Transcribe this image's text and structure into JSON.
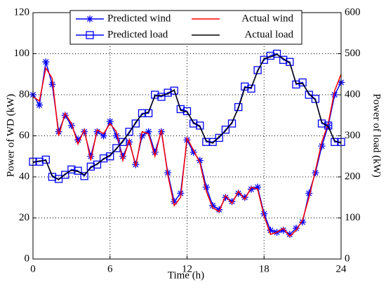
{
  "chart_data": {
    "type": "line",
    "xlabel": "Time (h)",
    "ylabel": "Power of WD (kW)",
    "y2label": "Power of load (kW)",
    "x": [
      0,
      0.5,
      1,
      1.5,
      2,
      2.5,
      3,
      3.5,
      4,
      4.5,
      5,
      5.5,
      6,
      6.5,
      7,
      7.5,
      8,
      8.5,
      9,
      9.5,
      10,
      10.5,
      11,
      11.5,
      12,
      12.5,
      13,
      13.5,
      14,
      14.5,
      15,
      15.5,
      16,
      16.5,
      17,
      17.5,
      18,
      18.5,
      19,
      19.5,
      20,
      20.5,
      21,
      21.5,
      22,
      22.5,
      23,
      23.5,
      24
    ],
    "series": [
      {
        "name": "Predicted wind",
        "color": "#0000ff",
        "marker": "star",
        "axis": "y",
        "values": [
          80,
          75,
          96,
          85,
          62,
          70,
          65,
          58,
          62,
          50,
          62,
          60,
          67,
          60,
          50,
          57,
          46,
          60,
          62,
          52,
          62,
          42,
          28,
          32,
          58,
          52,
          48,
          35,
          26,
          24,
          30,
          28,
          32,
          30,
          34,
          35,
          22,
          14,
          13,
          14,
          12,
          15,
          18,
          32,
          42,
          55,
          65,
          80,
          86
        ]
      },
      {
        "name": "Actual wind",
        "color": "#ff0000",
        "marker": "none",
        "axis": "y",
        "values": [
          79,
          77,
          93,
          88,
          60,
          71,
          66,
          56,
          63,
          48,
          63,
          61,
          66,
          62,
          48,
          58,
          45,
          62,
          61,
          50,
          63,
          41,
          26,
          30,
          59,
          53,
          47,
          33,
          25,
          23,
          31,
          27,
          33,
          29,
          35,
          34,
          21,
          12,
          13,
          15,
          11,
          14,
          19,
          30,
          43,
          57,
          66,
          82,
          90
        ]
      },
      {
        "name": "Predicted load",
        "color": "#0000ff",
        "marker": "square",
        "axis": "y2",
        "values": [
          237,
          237,
          242,
          200,
          195,
          205,
          218,
          215,
          202,
          225,
          230,
          245,
          250,
          270,
          285,
          310,
          330,
          355,
          355,
          400,
          395,
          405,
          410,
          365,
          360,
          330,
          325,
          285,
          285,
          295,
          315,
          330,
          370,
          420,
          415,
          460,
          485,
          495,
          500,
          485,
          480,
          425,
          430,
          400,
          390,
          330,
          325,
          285,
          285
        ]
      },
      {
        "name": "Actual load",
        "color": "#000000",
        "marker": "none",
        "axis": "y2",
        "values": [
          235,
          239,
          240,
          203,
          193,
          207,
          216,
          213,
          205,
          222,
          232,
          243,
          253,
          268,
          288,
          307,
          333,
          352,
          358,
          397,
          398,
          402,
          412,
          362,
          358,
          333,
          322,
          288,
          282,
          298,
          312,
          333,
          367,
          417,
          418,
          457,
          488,
          492,
          498,
          488,
          477,
          428,
          427,
          403,
          387,
          333,
          322,
          288,
          282
        ]
      }
    ],
    "xlim": [
      0,
      24
    ],
    "xticks": [
      0,
      6,
      12,
      18,
      24
    ],
    "ylim": [
      0,
      120
    ],
    "yticks": [
      0,
      20,
      40,
      60,
      80,
      100,
      120
    ],
    "y2lim": [
      0,
      600
    ],
    "y2ticks": [
      0,
      100,
      200,
      300,
      400,
      500,
      600
    ],
    "grid": true,
    "legend": "top"
  }
}
